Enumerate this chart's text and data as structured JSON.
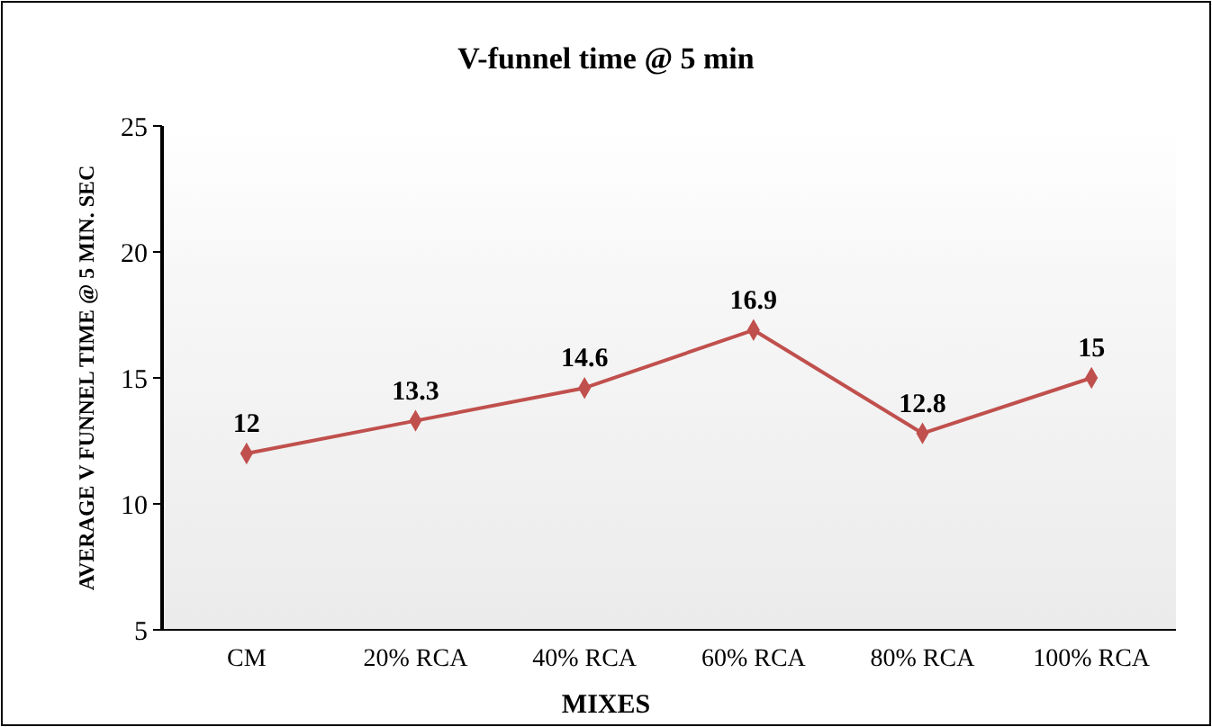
{
  "chart_data": {
    "type": "line",
    "title": "V-funnel time @ 5 min",
    "xlabel": "MIXES",
    "ylabel": "AVERAGE V FUNNEL TIME @ 5 MIN. SEC",
    "categories": [
      "CM",
      "20% RCA",
      "40% RCA",
      "60% RCA",
      "80% RCA",
      "100% RCA"
    ],
    "series": [
      {
        "color": "#c0504d",
        "values": [
          12,
          13.3,
          14.6,
          16.9,
          12.8,
          15
        ]
      }
    ],
    "ylim": [
      5,
      25
    ],
    "yticks": [
      5,
      10,
      15,
      20,
      25
    ],
    "data_labels": true,
    "marker": "diamond",
    "line_style": "solid"
  }
}
